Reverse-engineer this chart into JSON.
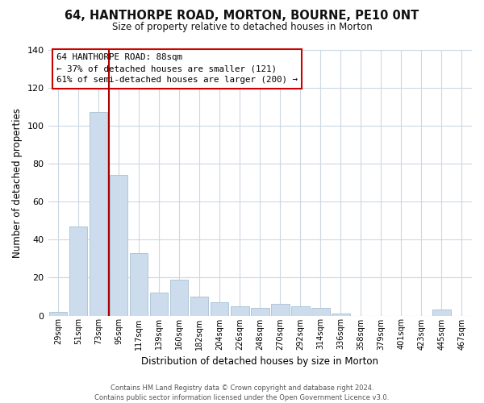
{
  "title": "64, HANTHORPE ROAD, MORTON, BOURNE, PE10 0NT",
  "subtitle": "Size of property relative to detached houses in Morton",
  "xlabel": "Distribution of detached houses by size in Morton",
  "ylabel": "Number of detached properties",
  "bar_color": "#ccdcec",
  "bar_edge_color": "#a8c0d4",
  "categories": [
    "29sqm",
    "51sqm",
    "73sqm",
    "95sqm",
    "117sqm",
    "139sqm",
    "160sqm",
    "182sqm",
    "204sqm",
    "226sqm",
    "248sqm",
    "270sqm",
    "292sqm",
    "314sqm",
    "336sqm",
    "358sqm",
    "379sqm",
    "401sqm",
    "423sqm",
    "445sqm",
    "467sqm"
  ],
  "values": [
    2,
    47,
    107,
    74,
    33,
    12,
    19,
    10,
    7,
    5,
    4,
    6,
    5,
    4,
    1,
    0,
    0,
    0,
    0,
    3,
    0
  ],
  "vline_color": "#aa0000",
  "ylim": [
    0,
    140
  ],
  "yticks": [
    0,
    20,
    40,
    60,
    80,
    100,
    120,
    140
  ],
  "annotation_title": "64 HANTHORPE ROAD: 88sqm",
  "annotation_line1": "← 37% of detached houses are smaller (121)",
  "annotation_line2": "61% of semi-detached houses are larger (200) →",
  "annotation_box_color": "#ffffff",
  "annotation_box_edge": "#cc0000",
  "footer1": "Contains HM Land Registry data © Crown copyright and database right 2024.",
  "footer2": "Contains public sector information licensed under the Open Government Licence v3.0.",
  "background_color": "#ffffff",
  "grid_color": "#ccd8e4",
  "vline_x_index": 2.5
}
